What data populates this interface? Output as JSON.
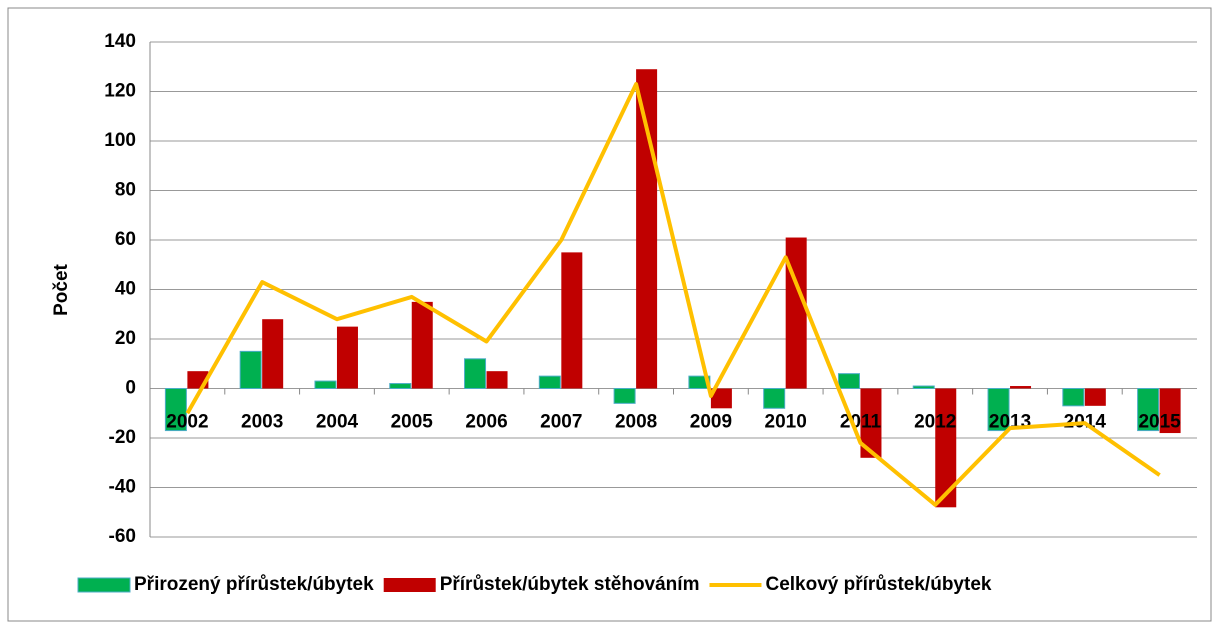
{
  "chart_data": {
    "type": "bar_line",
    "y_label": "Počet",
    "categories": [
      "2002",
      "2003",
      "2004",
      "2005",
      "2006",
      "2007",
      "2008",
      "2009",
      "2010",
      "2011",
      "2012",
      "2013",
      "2014",
      "2015"
    ],
    "series": [
      {
        "name": "Přirozený přírůstek/úbytek",
        "kind": "bar",
        "color": "#00b050",
        "stroke": "#4bacc6",
        "values": [
          -17,
          15,
          3,
          2,
          12,
          5,
          -6,
          5,
          -8,
          6,
          1,
          -17,
          -7,
          -17
        ]
      },
      {
        "name": "Přírůstek/úbytek stěhováním",
        "kind": "bar",
        "color": "#c00000",
        "values": [
          7,
          28,
          25,
          35,
          7,
          55,
          129,
          -8,
          61,
          -28,
          -48,
          1,
          -7,
          -18
        ]
      },
      {
        "name": "Celkový přírůstek/úbytek",
        "kind": "line",
        "color": "#ffc000",
        "values": [
          -10,
          43,
          28,
          37,
          19,
          60,
          123,
          -3,
          53,
          -22,
          -47,
          -16,
          -14,
          -35
        ]
      }
    ],
    "ylim": [
      -60,
      140
    ],
    "yticks": [
      -60,
      -40,
      -20,
      0,
      20,
      40,
      60,
      80,
      100,
      120,
      140
    ],
    "grid": true,
    "legend": "bottom"
  }
}
